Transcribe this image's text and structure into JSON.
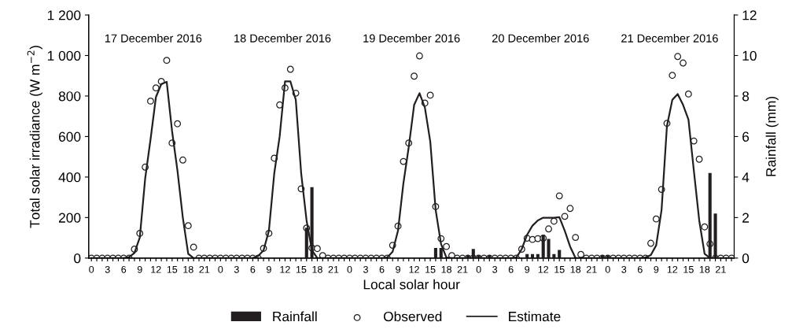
{
  "chart_data": {
    "type": "line",
    "xlabel": "Local solar hour",
    "ylabel": "Total solar irradiance (W m$^{−2}$)",
    "y2label": "Rainfall (mm)",
    "annotations": [
      "17 December 2016",
      "18 December 2016",
      "19 December 2016",
      "20 December 2016",
      "21 December 2016"
    ],
    "categories": [
      "0",
      null,
      null,
      "3",
      null,
      null,
      "6",
      null,
      null,
      "9",
      null,
      null,
      "12",
      null,
      null,
      "15",
      null,
      null,
      "18",
      null,
      null,
      "21",
      null,
      null,
      "0",
      null,
      null,
      "3",
      null,
      null,
      "6",
      null,
      null,
      "9",
      null,
      null,
      "12",
      null,
      null,
      "15",
      null,
      null,
      "18",
      null,
      null,
      "21",
      null,
      null,
      "0",
      null,
      null,
      "3",
      null,
      null,
      "6",
      null,
      null,
      "9",
      null,
      null,
      "12",
      null,
      null,
      "15",
      null,
      null,
      "18",
      null,
      null,
      "21",
      null,
      null,
      "0",
      null,
      null,
      "3",
      null,
      null,
      "6",
      null,
      null,
      "9",
      null,
      null,
      "12",
      null,
      null,
      "15",
      null,
      null,
      "18",
      null,
      null,
      "21",
      null,
      null,
      "0",
      null,
      null,
      "3",
      null,
      null,
      "6",
      null,
      null,
      "9",
      null,
      null,
      "12",
      null,
      null,
      "15",
      null,
      null,
      "18",
      null,
      null,
      "21",
      null,
      null
    ],
    "ylim": [
      0,
      1200
    ],
    "yticks": [
      0,
      200,
      400,
      600,
      800,
      {
        "value": 1000,
        "label": "1 000"
      },
      {
        "value": 1200,
        "label": "1 200"
      }
    ],
    "y2lim": [
      0,
      12
    ],
    "y2ticks": [
      0,
      2,
      4,
      6,
      8,
      10,
      12
    ],
    "grid": false,
    "legend": "bottom",
    "series": [
      {
        "name": "Rainfall",
        "type": "bar",
        "axis": "y2",
        "color": "#231f20",
        "values": [
          0,
          0,
          0,
          0,
          0,
          0,
          0,
          0,
          0,
          0,
          0,
          0,
          0,
          0,
          0,
          0,
          0,
          0,
          0,
          0,
          0,
          0,
          0,
          0,
          0,
          0,
          0,
          0,
          0,
          0,
          0,
          0,
          0,
          0,
          0,
          0,
          0,
          0,
          0,
          0,
          1.5,
          3.5,
          0,
          0,
          0,
          0,
          0,
          0,
          0,
          0,
          0,
          0,
          0,
          0,
          0,
          0,
          0,
          0,
          0,
          0,
          0,
          0,
          0,
          0,
          0.5,
          0.5,
          0,
          0,
          0,
          0,
          0.15,
          0.45,
          0.15,
          0,
          0.15,
          0,
          0,
          0,
          0,
          0,
          0,
          0.2,
          0.2,
          0.2,
          1.15,
          0.95,
          0.2,
          0.4,
          0,
          0,
          0,
          0,
          0,
          0,
          0,
          0.15,
          0.15,
          0,
          0,
          0,
          0,
          0,
          0,
          0,
          0,
          0,
          0,
          0,
          0,
          0,
          0,
          0,
          0,
          0,
          0,
          4.2,
          2.2,
          0,
          0,
          0
        ]
      },
      {
        "name": "Observed",
        "type": "scatter",
        "marker": "circle",
        "color": "#231f20",
        "values": [
          0,
          0,
          0,
          0,
          0,
          0,
          0,
          0,
          44,
          122,
          449,
          775,
          840,
          872,
          976,
          568,
          663,
          484,
          160,
          54,
          0,
          0,
          0,
          0,
          0,
          0,
          0,
          0,
          0,
          0,
          0,
          0,
          48,
          122,
          493,
          756,
          840,
          932,
          814,
          342,
          148,
          50,
          47,
          12,
          0,
          0,
          0,
          0,
          0,
          0,
          0,
          0,
          0,
          0,
          0,
          0,
          63,
          158,
          477,
          568,
          898,
          998,
          765,
          804,
          254,
          96,
          57,
          12,
          0,
          0,
          0,
          0,
          0,
          0,
          0,
          0,
          0,
          0,
          0,
          0,
          44,
          98,
          92,
          96,
          98,
          144,
          182,
          307,
          206,
          245,
          102,
          18,
          0,
          0,
          0,
          0,
          0,
          0,
          0,
          0,
          0,
          0,
          0,
          0,
          73,
          193,
          339,
          665,
          902,
          995,
          963,
          810,
          578,
          488,
          154,
          70,
          0,
          0,
          0,
          0
        ]
      },
      {
        "name": "Estimate",
        "marker": "none",
        "line_style": "solid",
        "color": "#231f20",
        "values": [
          0,
          0,
          0,
          0,
          0,
          0,
          0,
          5,
          25,
          102,
          393,
          587,
          795,
          859,
          870,
          626,
          432,
          199,
          21,
          0,
          0,
          0,
          0,
          0,
          0,
          0,
          0,
          0,
          0,
          0,
          0,
          10,
          38,
          135,
          419,
          600,
          872,
          872,
          781,
          419,
          186,
          39,
          0,
          0,
          0,
          0,
          0,
          0,
          0,
          0,
          0,
          0,
          0,
          0,
          0,
          3,
          31,
          135,
          368,
          549,
          756,
          814,
          743,
          575,
          238,
          70,
          3,
          0,
          0,
          0,
          0,
          0,
          0,
          0,
          0,
          0,
          0,
          0,
          0,
          3,
          44,
          115,
          160,
          186,
          199,
          199,
          199,
          202,
          135,
          57,
          0,
          0,
          0,
          0,
          0,
          0,
          0,
          0,
          0,
          0,
          0,
          0,
          0,
          3,
          15,
          63,
          238,
          652,
          781,
          810,
          756,
          684,
          432,
          186,
          21,
          0,
          0,
          0,
          0,
          0
        ]
      }
    ]
  }
}
